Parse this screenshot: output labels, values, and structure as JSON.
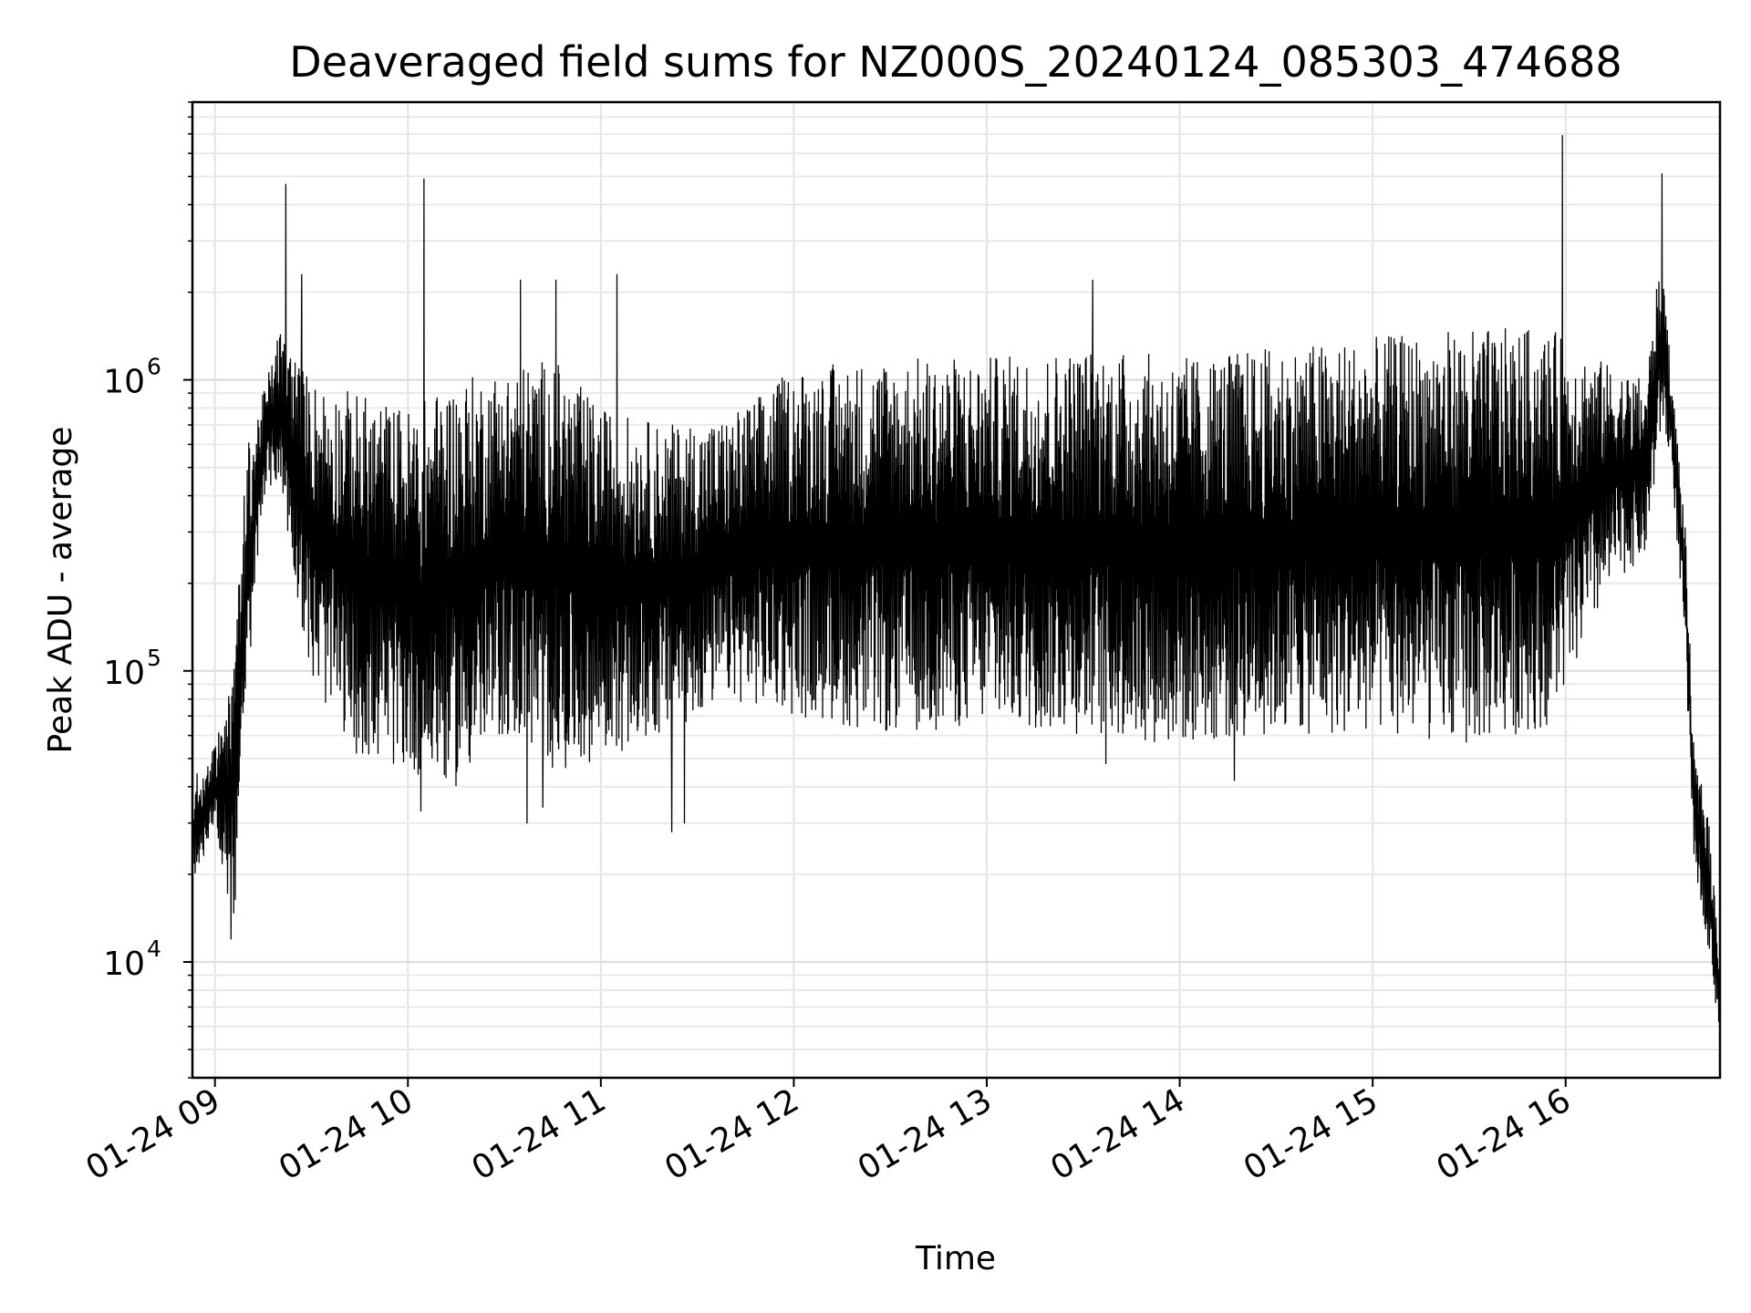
{
  "chart_data": {
    "type": "line",
    "title": "Deaveraged field sums for NZ000S_20240124_085303_474688",
    "xlabel": "Time",
    "ylabel": "Peak ADU - average",
    "y_scale": "log",
    "ylim": [
      4000,
      9000000
    ],
    "xlim": [
      "2024-01-24 08:53",
      "2024-01-24 16:48"
    ],
    "grid": true,
    "line_color": "#000000",
    "x_ticks": [
      {
        "time": "2024-01-24 09:00",
        "label": "01-24 09"
      },
      {
        "time": "2024-01-24 10:00",
        "label": "01-24 10"
      },
      {
        "time": "2024-01-24 11:00",
        "label": "01-24 11"
      },
      {
        "time": "2024-01-24 12:00",
        "label": "01-24 12"
      },
      {
        "time": "2024-01-24 13:00",
        "label": "01-24 13"
      },
      {
        "time": "2024-01-24 14:00",
        "label": "01-24 14"
      },
      {
        "time": "2024-01-24 15:00",
        "label": "01-24 15"
      },
      {
        "time": "2024-01-24 16:00",
        "label": "01-24 16"
      }
    ],
    "y_ticks": [
      {
        "value": 10000,
        "base": "10",
        "exp": "4"
      },
      {
        "value": 100000,
        "base": "10",
        "exp": "5"
      },
      {
        "value": 1000000,
        "base": "10",
        "exp": "6"
      }
    ],
    "envelope": [
      {
        "time": "2024-01-24 08:53",
        "low": 18000,
        "high": 42000
      },
      {
        "time": "2024-01-24 09:00",
        "low": 30000,
        "high": 55000
      },
      {
        "time": "2024-01-24 09:06",
        "low": 12000,
        "high": 110000
      },
      {
        "time": "2024-01-24 09:10",
        "low": 80000,
        "high": 600000
      },
      {
        "time": "2024-01-24 09:15",
        "low": 400000,
        "high": 900000
      },
      {
        "time": "2024-01-24 09:20",
        "low": 450000,
        "high": 1500000
      },
      {
        "time": "2024-01-24 09:30",
        "low": 90000,
        "high": 1000000
      },
      {
        "time": "2024-01-24 09:45",
        "low": 50000,
        "high": 900000
      },
      {
        "time": "2024-01-24 10:00",
        "low": 45000,
        "high": 800000
      },
      {
        "time": "2024-01-24 10:15",
        "low": 40000,
        "high": 1000000
      },
      {
        "time": "2024-01-24 10:30",
        "low": 60000,
        "high": 1100000
      },
      {
        "time": "2024-01-24 10:45",
        "low": 45000,
        "high": 1200000
      },
      {
        "time": "2024-01-24 11:00",
        "low": 50000,
        "high": 800000
      },
      {
        "time": "2024-01-24 11:20",
        "low": 60000,
        "high": 700000
      },
      {
        "time": "2024-01-24 11:40",
        "low": 80000,
        "high": 750000
      },
      {
        "time": "2024-01-24 12:00",
        "low": 70000,
        "high": 1100000
      },
      {
        "time": "2024-01-24 12:30",
        "low": 60000,
        "high": 1200000
      },
      {
        "time": "2024-01-24 13:00",
        "low": 65000,
        "high": 1200000
      },
      {
        "time": "2024-01-24 13:30",
        "low": 60000,
        "high": 1300000
      },
      {
        "time": "2024-01-24 14:00",
        "low": 55000,
        "high": 1200000
      },
      {
        "time": "2024-01-24 14:30",
        "low": 60000,
        "high": 1300000
      },
      {
        "time": "2024-01-24 15:00",
        "low": 60000,
        "high": 1400000
      },
      {
        "time": "2024-01-24 15:30",
        "low": 55000,
        "high": 1500000
      },
      {
        "time": "2024-01-24 15:55",
        "low": 65000,
        "high": 1500000
      },
      {
        "time": "2024-01-24 16:15",
        "low": 200000,
        "high": 1100000
      },
      {
        "time": "2024-01-24 16:25",
        "low": 250000,
        "high": 1000000
      },
      {
        "time": "2024-01-24 16:30",
        "low": 700000,
        "high": 3000000
      },
      {
        "time": "2024-01-24 16:33",
        "low": 500000,
        "high": 1000000
      },
      {
        "time": "2024-01-24 16:37",
        "low": 120000,
        "high": 350000
      },
      {
        "time": "2024-01-24 16:40",
        "low": 22000,
        "high": 50000
      },
      {
        "time": "2024-01-24 16:44",
        "low": 12000,
        "high": 35000
      },
      {
        "time": "2024-01-24 16:48",
        "low": 5500,
        "high": 11000
      }
    ],
    "spikes": [
      {
        "time": "2024-01-24 09:22",
        "value": 4700000
      },
      {
        "time": "2024-01-24 09:27",
        "value": 2300000
      },
      {
        "time": "2024-01-24 10:05",
        "value": 4900000
      },
      {
        "time": "2024-01-24 10:35",
        "value": 2200000
      },
      {
        "time": "2024-01-24 10:46",
        "value": 2200000
      },
      {
        "time": "2024-01-24 11:05",
        "value": 2300000
      },
      {
        "time": "2024-01-24 13:33",
        "value": 2200000
      },
      {
        "time": "2024-01-24 15:59",
        "value": 6900000
      },
      {
        "time": "2024-01-24 16:30",
        "value": 5100000
      }
    ],
    "dips": [
      {
        "time": "2024-01-24 09:05",
        "value": 12000
      },
      {
        "time": "2024-01-24 10:04",
        "value": 33000
      },
      {
        "time": "2024-01-24 10:37",
        "value": 30000
      },
      {
        "time": "2024-01-24 10:42",
        "value": 34000
      },
      {
        "time": "2024-01-24 11:22",
        "value": 28000
      },
      {
        "time": "2024-01-24 11:26",
        "value": 30000
      },
      {
        "time": "2024-01-24 13:37",
        "value": 48000
      },
      {
        "time": "2024-01-24 14:17",
        "value": 42000
      }
    ]
  }
}
